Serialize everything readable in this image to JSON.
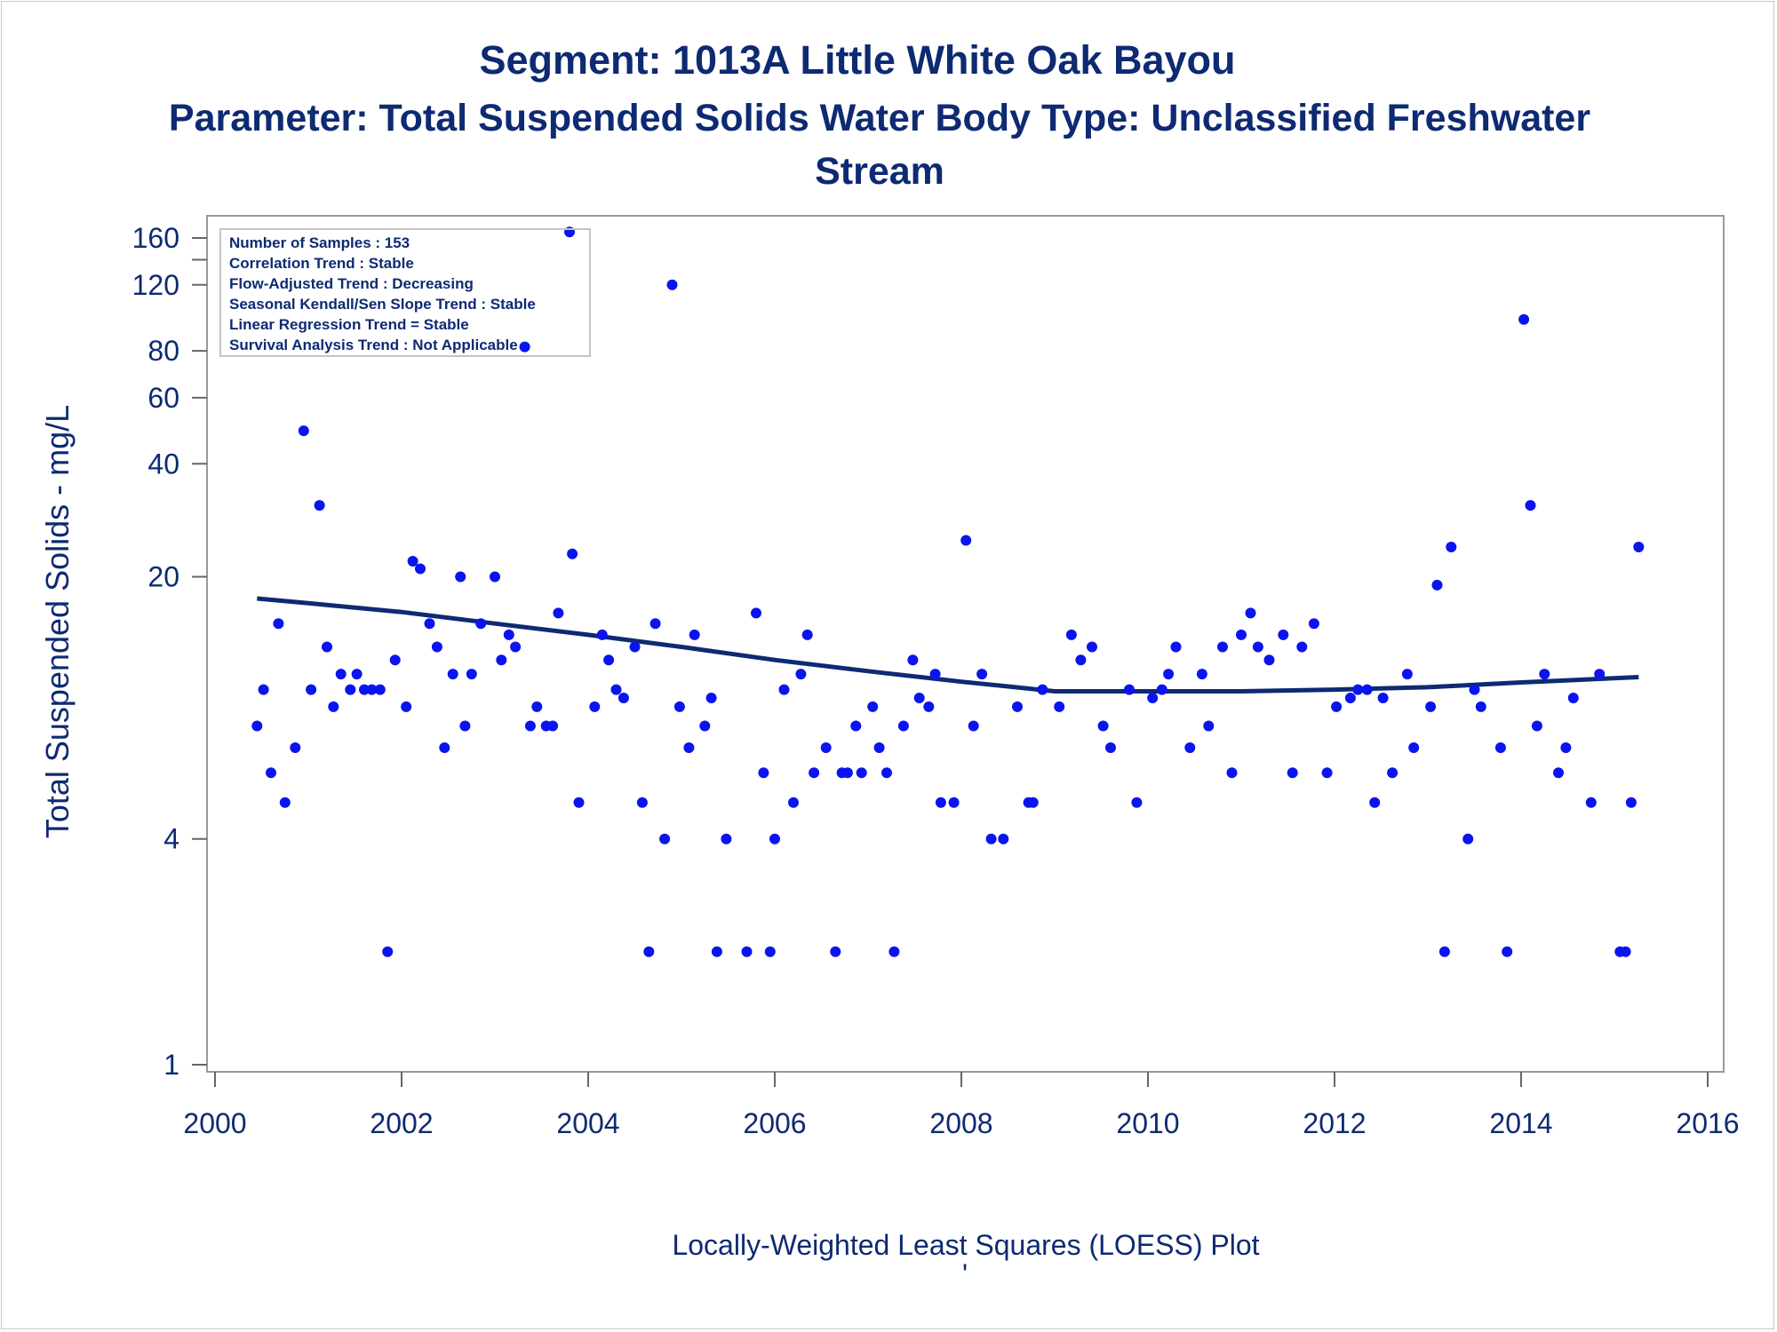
{
  "chart_data": {
    "type": "scatter",
    "title": "Segment: 1013A  Little White Oak Bayou",
    "subtitle_lines": [
      "Parameter: Total Suspended Solids   Water Body Type: Unclassified Freshwater",
      "Stream"
    ],
    "xlabel": "",
    "ylabel": "Total Suspended Solids - mg/L",
    "footnote": "Locally-Weighted Least Squares (LOESS) Plot",
    "footnote_mark": "'",
    "x_scale": "linear",
    "y_scale": "log",
    "xlim": [
      2000,
      2016
    ],
    "ylim": [
      1,
      185
    ],
    "x_ticks": [
      2000,
      2002,
      2004,
      2006,
      2008,
      2010,
      2012,
      2014,
      2016
    ],
    "y_ticks": [
      1,
      4,
      20,
      40,
      60,
      80,
      120,
      160
    ],
    "grid": false,
    "marker_color": "#0a14f0",
    "line_color": "#0d2a72",
    "inset_lines": [
      "Number of Samples : 153",
      "Correlation Trend : Stable",
      "Flow-Adjusted Trend : Decreasing",
      "Seasonal Kendall/Sen Slope Trend : Stable",
      "Linear Regression Trend = Stable",
      "Survival Analysis Trend : Not Applicable"
    ],
    "inset_placement": "top-left",
    "points": [
      [
        2000.45,
        8
      ],
      [
        2000.52,
        10
      ],
      [
        2000.6,
        6
      ],
      [
        2000.68,
        15
      ],
      [
        2000.75,
        5
      ],
      [
        2000.86,
        7
      ],
      [
        2000.95,
        49
      ],
      [
        2001.03,
        10
      ],
      [
        2001.12,
        31
      ],
      [
        2001.2,
        13
      ],
      [
        2001.27,
        9
      ],
      [
        2001.35,
        11
      ],
      [
        2001.45,
        10
      ],
      [
        2001.52,
        11
      ],
      [
        2001.6,
        10
      ],
      [
        2001.68,
        10
      ],
      [
        2001.77,
        10
      ],
      [
        2001.85,
        2
      ],
      [
        2001.93,
        12
      ],
      [
        2002.05,
        9
      ],
      [
        2002.12,
        22
      ],
      [
        2002.2,
        21
      ],
      [
        2002.3,
        15
      ],
      [
        2002.38,
        13
      ],
      [
        2002.46,
        7
      ],
      [
        2002.55,
        11
      ],
      [
        2002.63,
        20
      ],
      [
        2002.68,
        8
      ],
      [
        2002.75,
        11
      ],
      [
        2002.85,
        15
      ],
      [
        2003.0,
        20
      ],
      [
        2003.07,
        12
      ],
      [
        2003.15,
        14
      ],
      [
        2003.22,
        13
      ],
      [
        2003.32,
        82
      ],
      [
        2003.38,
        8
      ],
      [
        2003.45,
        9
      ],
      [
        2003.55,
        8
      ],
      [
        2003.62,
        8
      ],
      [
        2003.68,
        16
      ],
      [
        2003.8,
        166
      ],
      [
        2003.83,
        23
      ],
      [
        2003.9,
        5
      ],
      [
        2004.07,
        9
      ],
      [
        2004.15,
        14
      ],
      [
        2004.22,
        12
      ],
      [
        2004.3,
        10
      ],
      [
        2004.38,
        9.5
      ],
      [
        2004.5,
        13
      ],
      [
        2004.58,
        5
      ],
      [
        2004.65,
        2
      ],
      [
        2004.72,
        15
      ],
      [
        2004.82,
        4
      ],
      [
        2004.9,
        120
      ],
      [
        2004.98,
        9
      ],
      [
        2005.08,
        7
      ],
      [
        2005.14,
        14
      ],
      [
        2005.25,
        8
      ],
      [
        2005.32,
        9.5
      ],
      [
        2005.38,
        2
      ],
      [
        2005.48,
        4
      ],
      [
        2005.7,
        2
      ],
      [
        2005.8,
        16
      ],
      [
        2005.88,
        6
      ],
      [
        2005.95,
        2
      ],
      [
        2006.0,
        4
      ],
      [
        2006.1,
        10
      ],
      [
        2006.2,
        5
      ],
      [
        2006.28,
        11
      ],
      [
        2006.35,
        14
      ],
      [
        2006.42,
        6
      ],
      [
        2006.55,
        7
      ],
      [
        2006.65,
        2
      ],
      [
        2006.72,
        6
      ],
      [
        2006.78,
        6
      ],
      [
        2006.87,
        8
      ],
      [
        2006.93,
        6
      ],
      [
        2007.05,
        9
      ],
      [
        2007.12,
        7
      ],
      [
        2007.2,
        6
      ],
      [
        2007.28,
        2
      ],
      [
        2007.38,
        8
      ],
      [
        2007.48,
        12
      ],
      [
        2007.55,
        9.5
      ],
      [
        2007.65,
        9
      ],
      [
        2007.72,
        11
      ],
      [
        2007.78,
        5
      ],
      [
        2007.92,
        5
      ],
      [
        2008.05,
        25
      ],
      [
        2008.13,
        8
      ],
      [
        2008.22,
        11
      ],
      [
        2008.32,
        4
      ],
      [
        2008.45,
        4
      ],
      [
        2008.6,
        9
      ],
      [
        2008.72,
        5
      ],
      [
        2008.77,
        5
      ],
      [
        2008.87,
        10
      ],
      [
        2009.05,
        9
      ],
      [
        2009.18,
        14
      ],
      [
        2009.28,
        12
      ],
      [
        2009.4,
        13
      ],
      [
        2009.52,
        8
      ],
      [
        2009.6,
        7
      ],
      [
        2009.8,
        10
      ],
      [
        2009.88,
        5
      ],
      [
        2010.05,
        9.5
      ],
      [
        2010.15,
        10
      ],
      [
        2010.22,
        11
      ],
      [
        2010.3,
        13
      ],
      [
        2010.45,
        7
      ],
      [
        2010.58,
        11
      ],
      [
        2010.65,
        8
      ],
      [
        2010.8,
        13
      ],
      [
        2010.9,
        6
      ],
      [
        2011.0,
        14
      ],
      [
        2011.1,
        16
      ],
      [
        2011.18,
        13
      ],
      [
        2011.3,
        12
      ],
      [
        2011.45,
        14
      ],
      [
        2011.55,
        6
      ],
      [
        2011.65,
        13
      ],
      [
        2011.78,
        15
      ],
      [
        2011.92,
        6
      ],
      [
        2012.02,
        9
      ],
      [
        2012.17,
        9.5
      ],
      [
        2012.25,
        10
      ],
      [
        2012.35,
        10
      ],
      [
        2012.43,
        5
      ],
      [
        2012.52,
        9.5
      ],
      [
        2012.62,
        6
      ],
      [
        2012.78,
        11
      ],
      [
        2012.85,
        7
      ],
      [
        2013.03,
        9
      ],
      [
        2013.1,
        19
      ],
      [
        2013.18,
        2
      ],
      [
        2013.25,
        24
      ],
      [
        2013.43,
        4
      ],
      [
        2013.5,
        10
      ],
      [
        2013.57,
        9
      ],
      [
        2013.78,
        7
      ],
      [
        2013.85,
        2
      ],
      [
        2014.03,
        97
      ],
      [
        2014.1,
        31
      ],
      [
        2014.17,
        8
      ],
      [
        2014.25,
        11
      ],
      [
        2014.4,
        6
      ],
      [
        2014.48,
        7
      ],
      [
        2014.56,
        9.5
      ],
      [
        2014.75,
        5
      ],
      [
        2014.84,
        11
      ],
      [
        2015.06,
        2
      ],
      [
        2015.12,
        2
      ],
      [
        2015.18,
        5
      ],
      [
        2015.26,
        24
      ]
    ],
    "loess_curve": [
      [
        2000.45,
        17.5
      ],
      [
        2001.0,
        17.0
      ],
      [
        2002.0,
        16.1
      ],
      [
        2003.0,
        15.0
      ],
      [
        2004.0,
        14.0
      ],
      [
        2005.0,
        13.0
      ],
      [
        2006.0,
        12.0
      ],
      [
        2007.0,
        11.2
      ],
      [
        2008.0,
        10.5
      ],
      [
        2008.5,
        10.2
      ],
      [
        2009.0,
        9.9
      ],
      [
        2010.0,
        9.9
      ],
      [
        2011.0,
        9.9
      ],
      [
        2012.0,
        10.0
      ],
      [
        2013.0,
        10.15
      ],
      [
        2014.0,
        10.45
      ],
      [
        2015.26,
        10.8
      ]
    ]
  }
}
